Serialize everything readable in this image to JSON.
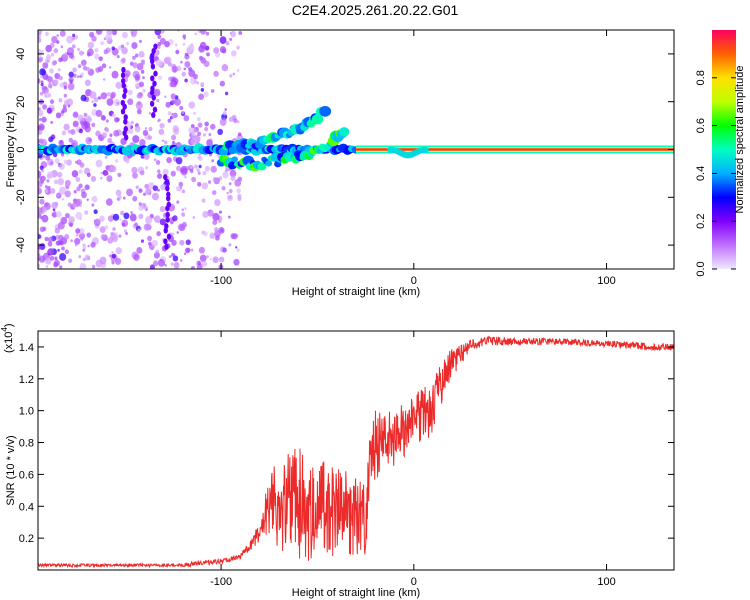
{
  "figure_title": "C2E4.2025.261.20.22.G01",
  "colors": {
    "trace": "#ec2a2a",
    "frame": "#000000",
    "background": "#ffffff"
  },
  "chart_data": [
    {
      "type": "heatmap",
      "title": "C2E4.2025.261.20.22.G01",
      "xlabel": "Height of straight line (km)",
      "ylabel": "Frequency (Hz)",
      "xlim": [
        -195,
        135
      ],
      "ylim": [
        -50,
        50
      ],
      "xticks": [
        -100,
        0,
        100
      ],
      "xtick_labels": [
        "-100",
        "0",
        "100"
      ],
      "yticks": [
        -40,
        -20,
        0,
        20,
        40
      ],
      "ytick_labels": [
        "-40",
        "-20",
        "0",
        "20",
        "40"
      ],
      "colorbar": {
        "label": "Normalized spectral amplitude",
        "range": [
          0,
          1
        ],
        "ticks": [
          0.0,
          0.2,
          0.4,
          0.6,
          0.8
        ],
        "tick_labels": [
          "0.0",
          "0.2",
          "0.4",
          "0.6",
          "0.8"
        ],
        "colormap_stops": [
          {
            "v": 0.0,
            "c": "#f0e8ff"
          },
          {
            "v": 0.1,
            "c": "#c070ff"
          },
          {
            "v": 0.2,
            "c": "#8000ff"
          },
          {
            "v": 0.3,
            "c": "#0000ff"
          },
          {
            "v": 0.4,
            "c": "#00b0ff"
          },
          {
            "v": 0.5,
            "c": "#00ffc0"
          },
          {
            "v": 0.6,
            "c": "#00ff00"
          },
          {
            "v": 0.7,
            "c": "#c0ff00"
          },
          {
            "v": 0.8,
            "c": "#ffe000"
          },
          {
            "v": 0.9,
            "c": "#ff6000"
          },
          {
            "v": 1.0,
            "c": "#ff0060"
          }
        ]
      },
      "features": [
        {
          "name": "noisy scatter region",
          "x_range": [
            -195,
            -100
          ],
          "y_range": [
            -50,
            50
          ],
          "amplitude": 0.15
        },
        {
          "name": "primary carrier line",
          "x_range": [
            -195,
            -30
          ],
          "y": 0,
          "amplitude": 0.45
        },
        {
          "name": "upper rising branch",
          "points": [
            [
              -100,
              0
            ],
            [
              -80,
              3
            ],
            [
              -60,
              8
            ],
            [
              -50,
              14
            ],
            [
              -45,
              18
            ]
          ],
          "amplitude": 0.45
        },
        {
          "name": "lower rising branch",
          "points": [
            [
              -100,
              -5
            ],
            [
              -80,
              -6
            ],
            [
              -60,
              -3
            ],
            [
              -45,
              0
            ],
            [
              -35,
              10
            ]
          ],
          "amplitude": 0.5
        },
        {
          "name": "steady signal",
          "x_range": [
            -30,
            135
          ],
          "y": 0,
          "amplitude": 0.95
        }
      ]
    },
    {
      "type": "line",
      "title": "",
      "xlabel": "Height of straight line (km)",
      "ylabel": "SNR (10 * v/v)",
      "scale_label": "(x10",
      "scale_exp": "4",
      "scale_close": ")",
      "xlim": [
        -195,
        135
      ],
      "ylim": [
        0,
        1.5
      ],
      "xticks": [
        -100,
        0,
        100
      ],
      "xtick_labels": [
        "-100",
        "0",
        "100"
      ],
      "yticks": [
        0.2,
        0.4,
        0.6,
        0.8,
        1.0,
        1.2,
        1.4
      ],
      "ytick_labels": [
        "0.2",
        "0.4",
        "0.6",
        "0.8",
        "1.0",
        "1.2",
        "1.4"
      ],
      "series": [
        {
          "name": "SNR",
          "color": "#ec2a2a",
          "envelope": {
            "x": [
              -195,
              -120,
              -110,
              -100,
              -90,
              -85,
              -80,
              -75,
              -70,
              -60,
              -50,
              -40,
              -30,
              -25,
              -22,
              -20,
              -15,
              -10,
              0,
              10,
              15,
              20,
              25,
              30,
              35,
              40,
              50,
              60,
              80,
              100,
              120,
              135
            ],
            "low": [
              0.02,
              0.02,
              0.03,
              0.04,
              0.07,
              0.12,
              0.18,
              0.22,
              0.1,
              0.05,
              0.05,
              0.05,
              0.07,
              0.1,
              0.5,
              0.55,
              0.62,
              0.65,
              0.75,
              0.85,
              1.05,
              1.2,
              1.3,
              1.38,
              1.4,
              1.41,
              1.41,
              1.41,
              1.41,
              1.4,
              1.38,
              1.38
            ],
            "high": [
              0.04,
              0.04,
              0.06,
              0.07,
              0.1,
              0.18,
              0.3,
              0.65,
              0.7,
              0.78,
              0.7,
              0.65,
              0.6,
              0.55,
              0.95,
              1.0,
              0.98,
              1.02,
              1.1,
              1.2,
              1.32,
              1.4,
              1.42,
              1.45,
              1.46,
              1.47,
              1.46,
              1.46,
              1.45,
              1.44,
              1.43,
              1.42
            ]
          }
        }
      ]
    }
  ]
}
